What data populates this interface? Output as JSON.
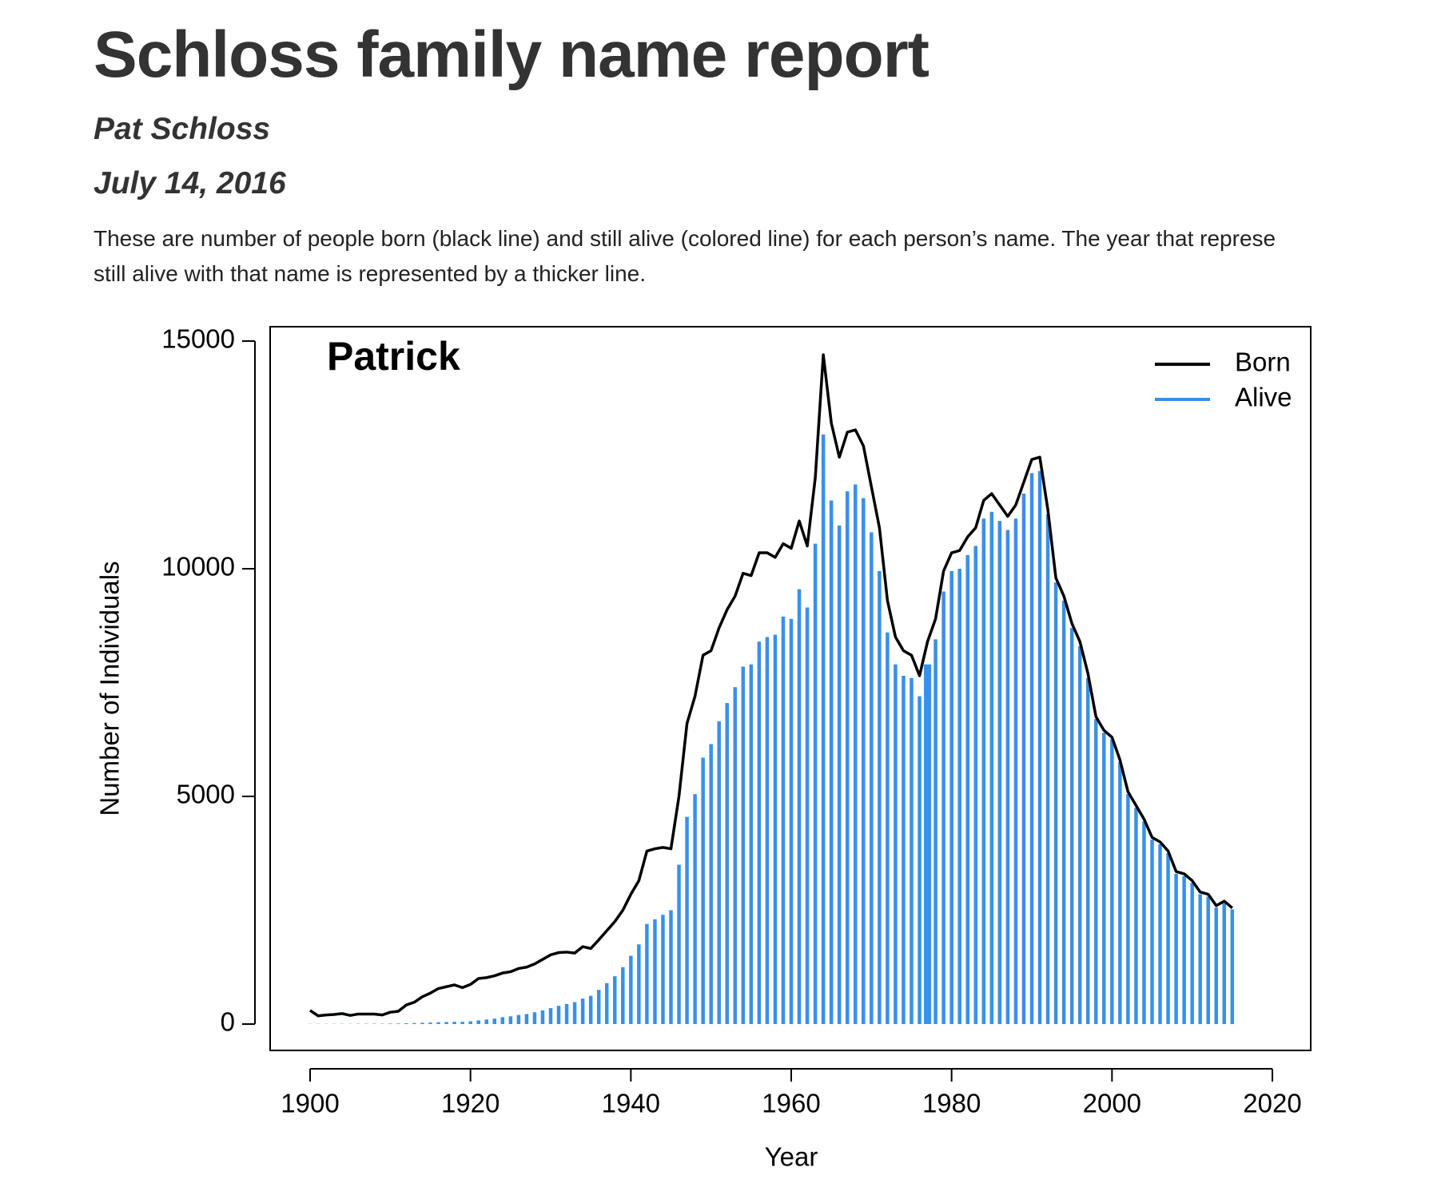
{
  "header": {
    "title": "Schloss family name report",
    "author": "Pat Schloss",
    "date": "July 14, 2016"
  },
  "paragraph": [
    "These are number of people born (black line) and still alive (colored line) for each person’s name. The year that represe",
    "still alive with that name is represented by a thicker line."
  ],
  "chart_data": {
    "type": "line",
    "title": "Patrick",
    "xlabel": "Year",
    "ylabel": "Number of Individuals",
    "x": [
      1900,
      1901,
      1902,
      1903,
      1904,
      1905,
      1906,
      1907,
      1908,
      1909,
      1910,
      1911,
      1912,
      1913,
      1914,
      1915,
      1916,
      1917,
      1918,
      1919,
      1920,
      1921,
      1922,
      1923,
      1924,
      1925,
      1926,
      1927,
      1928,
      1929,
      1930,
      1931,
      1932,
      1933,
      1934,
      1935,
      1936,
      1937,
      1938,
      1939,
      1940,
      1941,
      1942,
      1943,
      1944,
      1945,
      1946,
      1947,
      1948,
      1949,
      1950,
      1951,
      1952,
      1953,
      1954,
      1955,
      1956,
      1957,
      1958,
      1959,
      1960,
      1961,
      1962,
      1963,
      1964,
      1965,
      1966,
      1967,
      1968,
      1969,
      1970,
      1971,
      1972,
      1973,
      1974,
      1975,
      1976,
      1977,
      1978,
      1979,
      1980,
      1981,
      1982,
      1983,
      1984,
      1985,
      1986,
      1987,
      1988,
      1989,
      1990,
      1991,
      1992,
      1993,
      1994,
      1995,
      1996,
      1997,
      1998,
      1999,
      2000,
      2001,
      2002,
      2003,
      2004,
      2005,
      2006,
      2007,
      2008,
      2009,
      2010,
      2011,
      2012,
      2013,
      2014,
      2015
    ],
    "series": [
      {
        "name": "Born",
        "color": "#000000",
        "mark": "line",
        "values": [
          300,
          180,
          200,
          210,
          230,
          190,
          220,
          220,
          220,
          200,
          260,
          280,
          420,
          480,
          600,
          680,
          780,
          820,
          860,
          800,
          870,
          1000,
          1020,
          1060,
          1120,
          1150,
          1220,
          1250,
          1320,
          1420,
          1520,
          1570,
          1580,
          1560,
          1700,
          1660,
          1850,
          2050,
          2250,
          2500,
          2850,
          3150,
          3800,
          3850,
          3880,
          3850,
          5000,
          6600,
          7200,
          8100,
          8200,
          8700,
          9100,
          9400,
          9900,
          9850,
          10350,
          10350,
          10250,
          10550,
          10450,
          11050,
          10500,
          12000,
          14700,
          13200,
          12450,
          13000,
          13050,
          12700,
          11800,
          10900,
          9300,
          8500,
          8200,
          8100,
          7650,
          8400,
          8900,
          9950,
          10350,
          10400,
          10700,
          10900,
          11500,
          11650,
          11400,
          11150,
          11400,
          11900,
          12400,
          12450,
          11300,
          9800,
          9400,
          8800,
          8400,
          7700,
          6750,
          6450,
          6300,
          5800,
          5100,
          4800,
          4500,
          4100,
          4000,
          3800,
          3350,
          3300,
          3150,
          2900,
          2850,
          2600,
          2700,
          2550
        ]
      },
      {
        "name": "Alive",
        "color": "#3a8fe8",
        "mark": "spikes",
        "values": [
          5,
          5,
          5,
          5,
          5,
          5,
          6,
          7,
          8,
          8,
          10,
          12,
          18,
          22,
          28,
          33,
          40,
          45,
          50,
          50,
          60,
          80,
          100,
          120,
          150,
          170,
          200,
          220,
          260,
          300,
          350,
          400,
          440,
          480,
          560,
          620,
          750,
          900,
          1050,
          1250,
          1500,
          1750,
          2200,
          2300,
          2400,
          2500,
          3500,
          4550,
          5050,
          5850,
          6150,
          6650,
          7050,
          7400,
          7850,
          7900,
          8400,
          8500,
          8550,
          8950,
          8900,
          9550,
          9150,
          10550,
          12950,
          11500,
          10950,
          11700,
          11850,
          11550,
          10800,
          9950,
          8600,
          7900,
          7650,
          7600,
          7200,
          7900,
          8450,
          9500,
          9950,
          10000,
          10300,
          10500,
          11100,
          11250,
          11050,
          10850,
          11100,
          11650,
          12100,
          12150,
          11200,
          9700,
          9300,
          8700,
          8300,
          7600,
          6700,
          6400,
          6250,
          5750,
          5050,
          4750,
          4450,
          4050,
          3950,
          3750,
          3300,
          3250,
          3100,
          2850,
          2800,
          2560,
          2650,
          2520
        ]
      }
    ],
    "highlight_x": 1977,
    "xlim": [
      1900,
      2020
    ],
    "xticks": [
      1900,
      1920,
      1940,
      1960,
      1980,
      2000,
      2020
    ],
    "ylim": [
      0,
      15000
    ],
    "yticks": [
      0,
      5000,
      10000,
      15000
    ],
    "legend": "top-right"
  }
}
